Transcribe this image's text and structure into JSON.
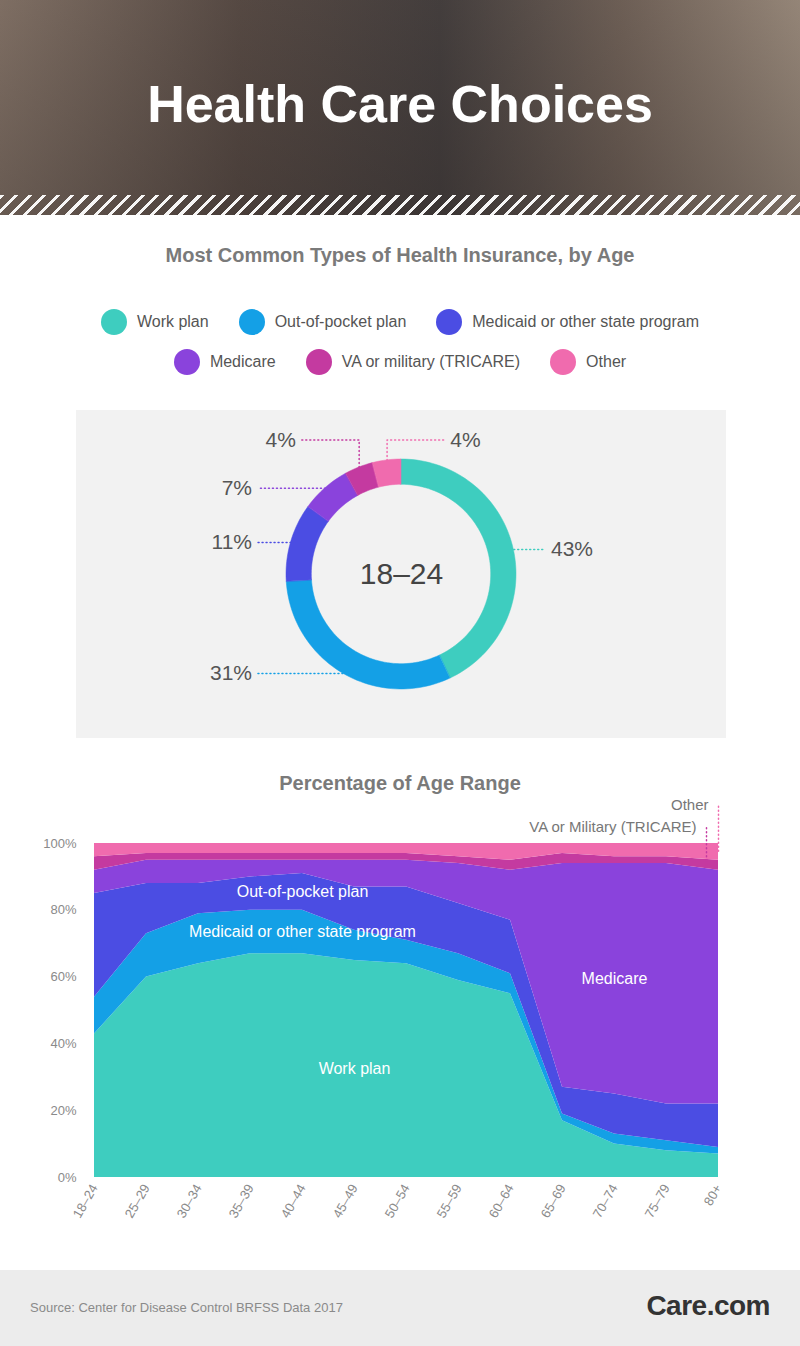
{
  "header": {
    "title": "Health Care Choices"
  },
  "chart_data": [
    {
      "type": "pie",
      "title": "Most Common Types of Health Insurance, by Age",
      "center_text": "18–24",
      "categories": [
        "Work plan",
        "Out-of-pocket plan",
        "Medicaid or other state program",
        "Medicare",
        "VA or military (TRICARE)",
        "Other"
      ],
      "values": [
        43,
        31,
        11,
        7,
        4,
        4
      ],
      "value_labels": [
        "43%",
        "31%",
        "11%",
        "7%",
        "4%",
        "4%"
      ],
      "colors": [
        "#3ecdbf",
        "#14a0e6",
        "#4b4de3",
        "#8a43dc",
        "#c43aa0",
        "#f06bae"
      ],
      "data_labels": true,
      "legend": "top",
      "tick_labels": false
    },
    {
      "type": "area",
      "title": "Percentage of Age Range",
      "stacked": true,
      "categories": [
        "18–24",
        "25–29",
        "30–34",
        "35–39",
        "40–44",
        "45–49",
        "50–54",
        "55–59",
        "60–64",
        "65–69",
        "70–74",
        "75–79",
        "80+"
      ],
      "series": [
        {
          "name": "Work plan",
          "color": "#3ecdbf",
          "values": [
            43,
            60,
            64,
            67,
            67,
            65,
            64,
            59,
            55,
            17,
            10,
            8,
            7
          ]
        },
        {
          "name": "Medicaid or other state program",
          "color": "#14a0e6",
          "values": [
            11,
            13,
            15,
            13,
            13,
            9,
            7,
            8,
            6,
            2,
            3,
            3,
            2
          ]
        },
        {
          "name": "Out-of-pocket plan",
          "color": "#4b4de3",
          "values": [
            31,
            15,
            9,
            10,
            11,
            13,
            16,
            15,
            16,
            8,
            12,
            11,
            13
          ]
        },
        {
          "name": "Medicare",
          "color": "#8a43dc",
          "values": [
            7,
            7,
            7,
            5,
            4,
            8,
            8,
            12,
            15,
            67,
            69,
            72,
            70
          ]
        },
        {
          "name": "VA or Military (TRICARE)",
          "color": "#c43aa0",
          "values": [
            4,
            2,
            2,
            2,
            2,
            2,
            2,
            2,
            3,
            3,
            2,
            2,
            3
          ]
        },
        {
          "name": "Other",
          "color": "#f06bae",
          "values": [
            4,
            3,
            3,
            3,
            3,
            3,
            3,
            4,
            5,
            3,
            4,
            4,
            5
          ]
        }
      ],
      "ylim": [
        0,
        100
      ],
      "yticks": [
        {
          "value": 0,
          "label": "0%"
        },
        {
          "value": 20,
          "label": "20%"
        },
        {
          "value": 40,
          "label": "40%"
        },
        {
          "value": 60,
          "label": "60%"
        },
        {
          "value": 80,
          "label": "80%"
        },
        {
          "value": 100,
          "label": "100%"
        }
      ],
      "grid": false
    }
  ],
  "footer": {
    "source": "Source: Center for Disease Control BRFSS Data 2017",
    "logo": "Care.com"
  }
}
